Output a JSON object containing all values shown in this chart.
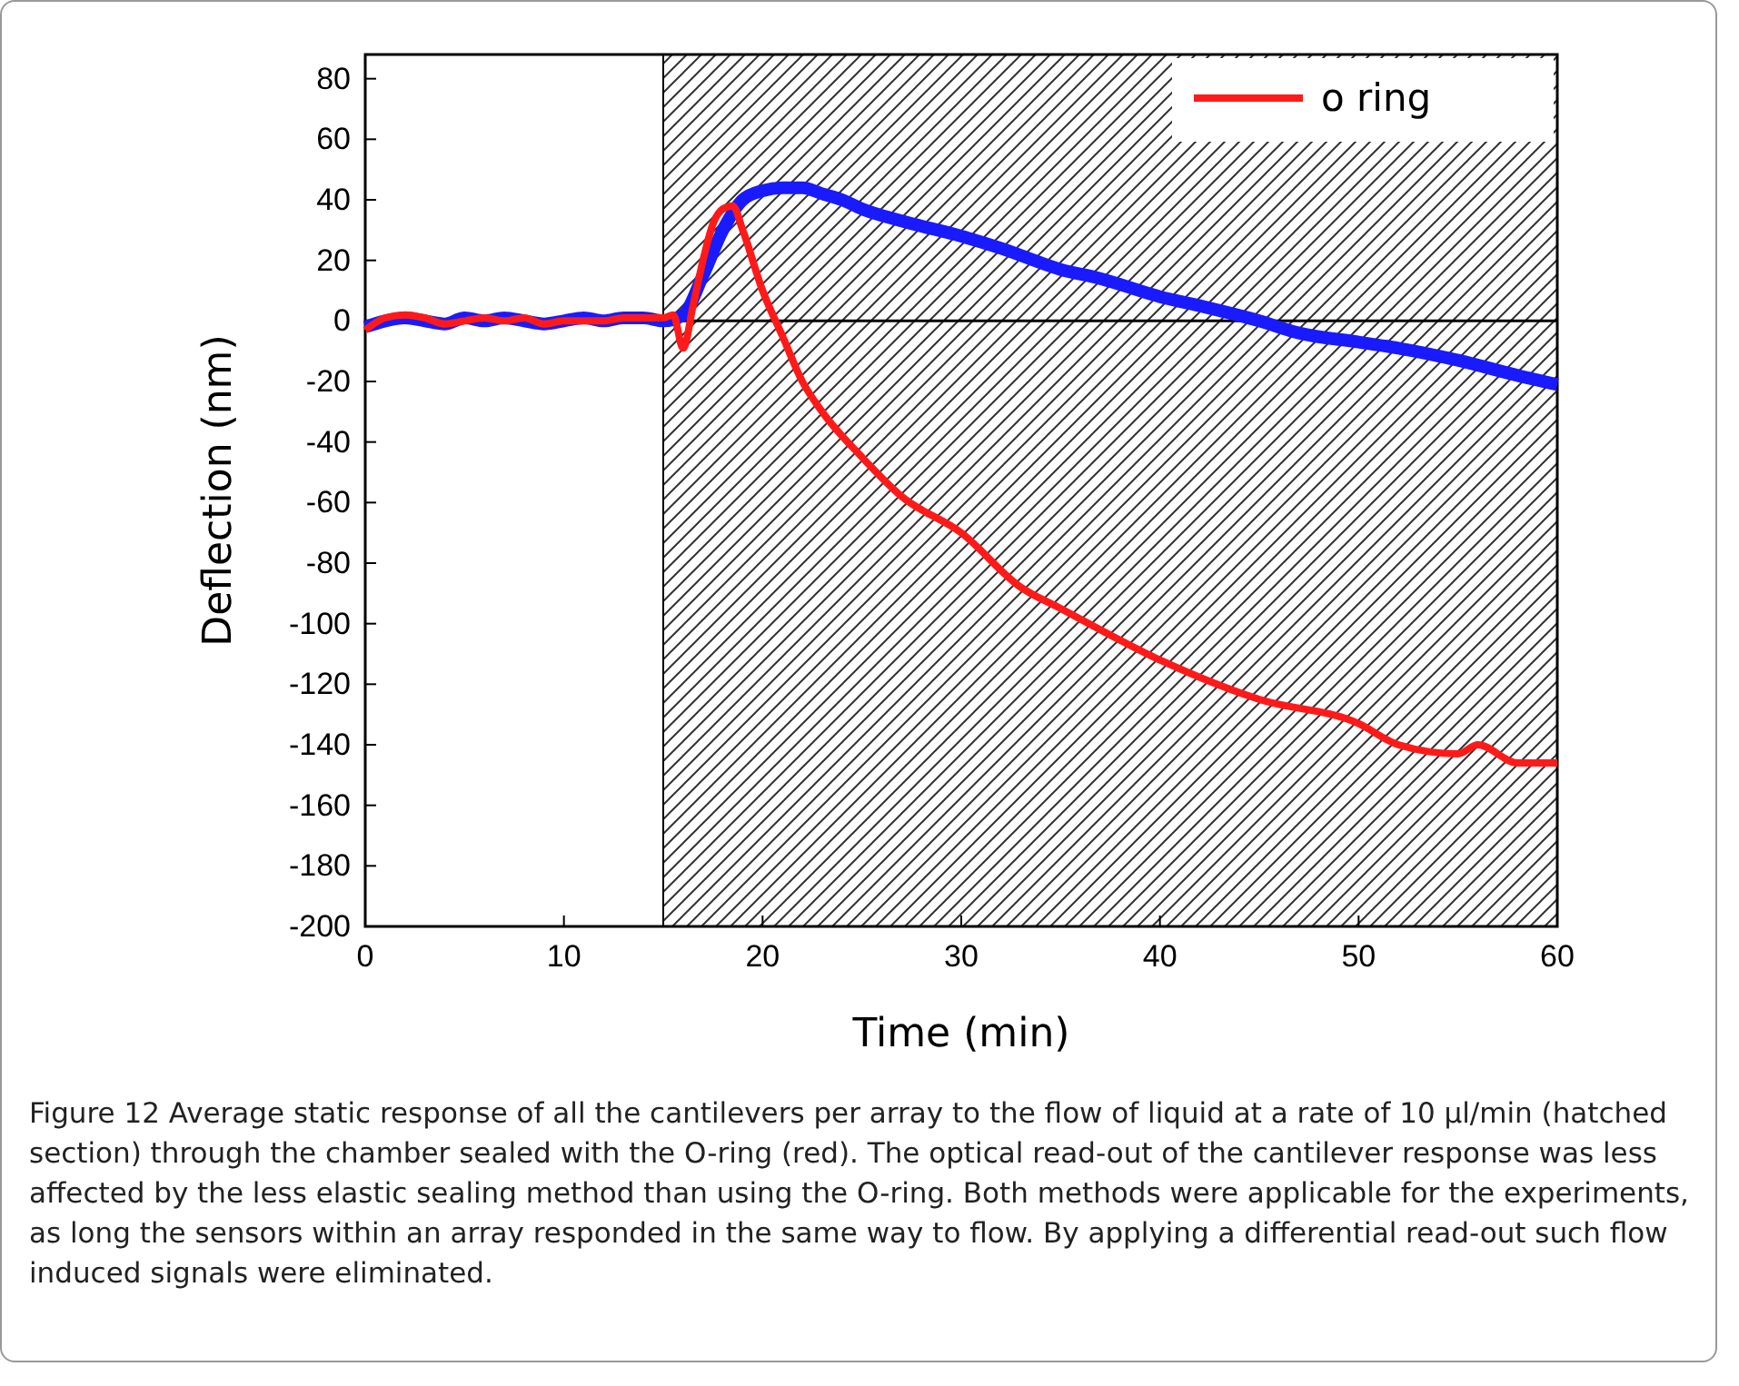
{
  "chart_data": {
    "type": "line",
    "xlabel": "Time (min)",
    "ylabel": "Deflection (nm)",
    "xlim": [
      0,
      60
    ],
    "xticks": [
      0,
      10,
      20,
      30,
      40,
      50,
      60
    ],
    "ylim": [
      -200,
      88
    ],
    "yticks": [
      -200,
      -180,
      -160,
      -140,
      -120,
      -100,
      -80,
      -60,
      -40,
      -20,
      0,
      20,
      40,
      60,
      80
    ],
    "grid": false,
    "legend": "top right",
    "marker": "none",
    "line_style": "solid",
    "series": [
      {
        "color": "#1a1aff",
        "x": [
          0,
          1,
          2,
          3,
          4,
          5,
          6,
          7,
          8,
          9,
          10,
          11,
          12,
          13,
          14,
          15,
          16,
          17,
          18,
          19,
          20,
          21,
          22,
          23,
          24,
          25,
          27,
          30,
          32,
          35,
          37,
          40,
          42,
          45,
          47,
          50,
          52,
          55,
          58,
          60
        ],
        "values": [
          -2,
          0,
          1,
          0,
          -1,
          1,
          0,
          1,
          0,
          -1,
          0,
          1,
          0,
          1,
          1,
          0,
          2,
          15,
          30,
          40,
          43,
          44,
          44,
          42,
          40,
          37,
          33,
          28,
          24,
          17,
          14,
          8,
          5,
          0,
          -4,
          -7,
          -9,
          -13,
          -18,
          -21
        ]
      },
      {
        "name": "o ring",
        "color": "#ff1a1a",
        "x": [
          0,
          1,
          2,
          3,
          4,
          5,
          6,
          7,
          8,
          9,
          10,
          11,
          12,
          13,
          14,
          15,
          15.5,
          16,
          16.5,
          17,
          17.5,
          18,
          18.5,
          19,
          20,
          21,
          22,
          23,
          25,
          27,
          30,
          33,
          35,
          40,
          45,
          50,
          52,
          55,
          56,
          58,
          60
        ],
        "values": [
          -3,
          1,
          2,
          1,
          -1,
          0,
          1,
          0,
          1,
          -1,
          0,
          0,
          0,
          1,
          1,
          1,
          2,
          -9,
          5,
          20,
          32,
          37,
          38,
          30,
          10,
          -5,
          -20,
          -30,
          -45,
          -58,
          -70,
          -88,
          -95,
          -112,
          -125,
          -133,
          -140,
          -143,
          -140,
          -146,
          -146
        ]
      }
    ],
    "ref_lines": [
      {
        "axis": "y",
        "value": 0,
        "color": "#000000"
      }
    ],
    "bands": [
      {
        "axis": "x",
        "from": 15,
        "to": 60
      }
    ],
    "annotations": [
      "Figure 12 Average static response of all the cantilevers per array to the flow of liquid at a rate of 10 µl/min (hatched section) through the chamber sealed with the O-ring (red). The optical read-out of the cantilever response was less affected by the less elastic sealing method than using the O-ring. Both methods were applicable for the experiments, as long the sensors within an array responded in the same way to flow. By applying a differential read-out such flow induced signals were eliminated."
    ]
  }
}
